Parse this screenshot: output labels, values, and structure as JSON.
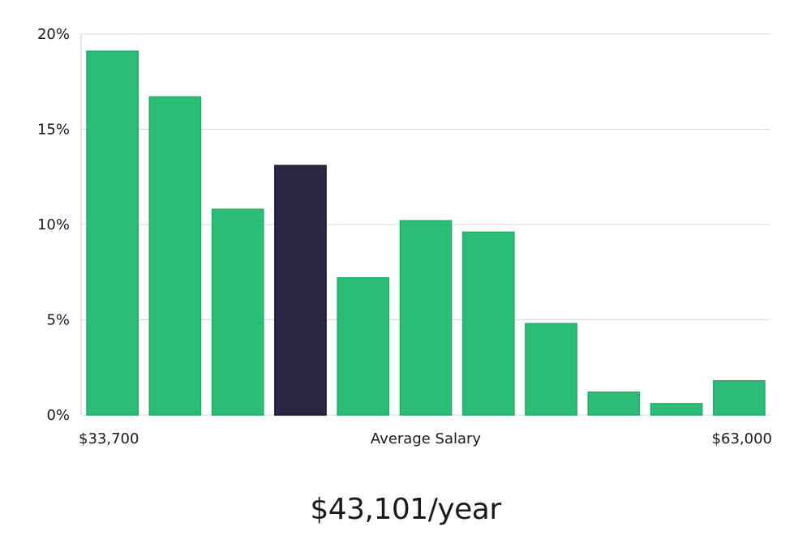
{
  "colors": {
    "bar": "#2bbd77",
    "bar_border": "#22ad6a",
    "highlight": "#2a2745",
    "highlight_border": "#1c1a33",
    "grid": "#d9d9d9"
  },
  "chart_data": {
    "type": "bar",
    "x_min_label": "$33,700",
    "x_center_label": "Average Salary",
    "x_max_label": "$63,000",
    "values": [
      19.1,
      16.7,
      10.8,
      13.1,
      7.2,
      10.2,
      9.6,
      4.8,
      1.2,
      0.6,
      1.8
    ],
    "highlight_index": 3,
    "ylim": [
      0,
      20
    ],
    "y_ticks": [
      0,
      5,
      10,
      15,
      20
    ],
    "y_tick_labels": [
      "0%",
      "5%",
      "10%",
      "15%",
      "20%"
    ],
    "grid": true
  },
  "average_salary_text": "$43,101/year"
}
